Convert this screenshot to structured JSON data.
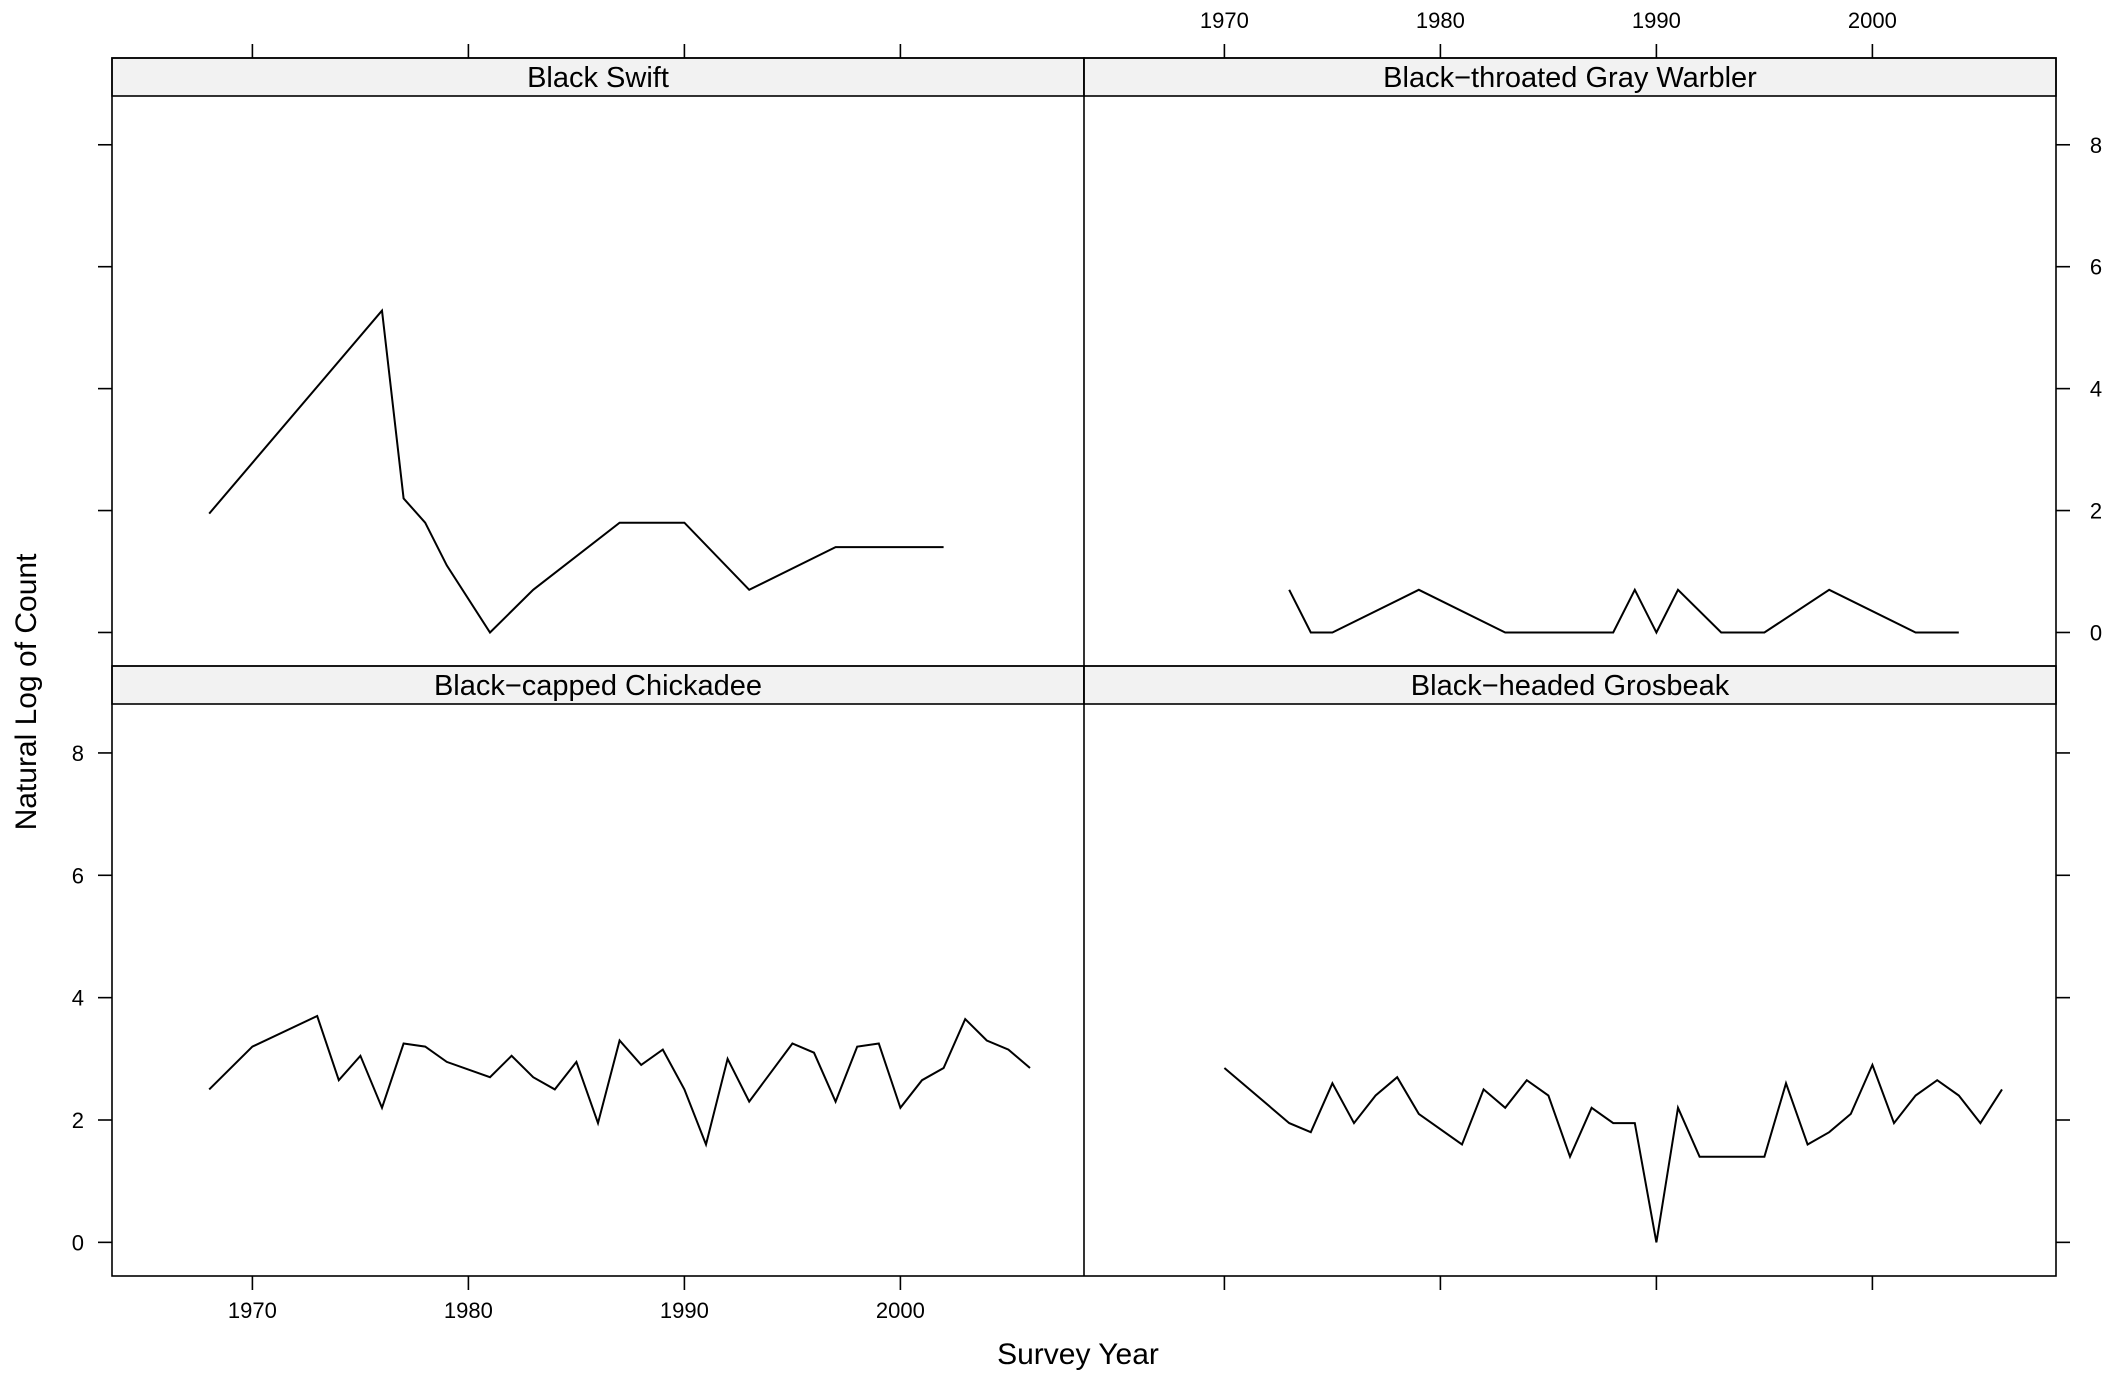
{
  "chart_data": {
    "type": "line",
    "layout": "2x2 trellis panels (lattice)",
    "xlabel": "Survey Year",
    "ylabel": "Natural Log of Count",
    "xlim": [
      1963.5,
      2008.5
    ],
    "ylim": [
      -0.55,
      8.8
    ],
    "x_ticks": [
      1970,
      1980,
      1990,
      2000
    ],
    "y_ticks": [
      0,
      2,
      4,
      6,
      8
    ],
    "grid": false,
    "legend": "none",
    "panels": [
      {
        "title": "Black Swift",
        "position": "top-left",
        "x": [
          1968,
          1976,
          1977,
          1978,
          1979,
          1981,
          1983,
          1987,
          1990,
          1993,
          1997,
          2002
        ],
        "y": [
          1.95,
          5.28,
          2.2,
          1.8,
          1.1,
          0.0,
          0.7,
          1.8,
          1.8,
          0.7,
          1.4,
          1.4
        ]
      },
      {
        "title": "Black−throated Gray Warbler",
        "position": "top-right",
        "x": [
          1973,
          1974,
          1975,
          1979,
          1983,
          1988,
          1989,
          1990,
          1991,
          1993,
          1995,
          1998,
          2002,
          2004
        ],
        "y": [
          0.7,
          0.0,
          0.0,
          0.7,
          0.0,
          0.0,
          0.7,
          0.0,
          0.7,
          0.0,
          0.0,
          0.7,
          0.0,
          0.0
        ]
      },
      {
        "title": "Black−capped Chickadee",
        "position": "bottom-left",
        "x": [
          1968,
          1970,
          1973,
          1974,
          1975,
          1976,
          1977,
          1978,
          1979,
          1981,
          1982,
          1983,
          1984,
          1985,
          1986,
          1987,
          1988,
          1989,
          1990,
          1991,
          1992,
          1993,
          1995,
          1996,
          1997,
          1998,
          1999,
          2000,
          2001,
          2002,
          2003,
          2004,
          2005,
          2006
        ],
        "y": [
          2.5,
          3.2,
          3.7,
          2.65,
          3.05,
          2.2,
          3.25,
          3.2,
          2.95,
          2.7,
          3.05,
          2.7,
          2.5,
          2.95,
          1.95,
          3.3,
          2.9,
          3.15,
          2.5,
          1.6,
          3.0,
          2.3,
          3.25,
          3.1,
          2.3,
          3.2,
          3.25,
          2.2,
          2.65,
          2.85,
          3.65,
          3.3,
          3.15,
          2.85
        ]
      },
      {
        "title": "Black−headed Grosbeak",
        "position": "bottom-right",
        "x": [
          1970,
          1973,
          1974,
          1975,
          1976,
          1977,
          1978,
          1979,
          1981,
          1982,
          1983,
          1984,
          1985,
          1986,
          1987,
          1988,
          1989,
          1990,
          1991,
          1992,
          1995,
          1996,
          1997,
          1998,
          1999,
          2000,
          2001,
          2002,
          2003,
          2004,
          2005,
          2006
        ],
        "y": [
          2.85,
          1.95,
          1.8,
          2.6,
          1.95,
          2.4,
          2.7,
          2.1,
          1.6,
          2.5,
          2.2,
          2.65,
          2.4,
          1.4,
          2.2,
          1.95,
          1.95,
          0.0,
          2.2,
          1.4,
          1.4,
          2.6,
          1.6,
          1.8,
          2.1,
          2.9,
          1.95,
          2.4,
          2.65,
          2.4,
          1.95,
          2.5
        ]
      }
    ]
  }
}
